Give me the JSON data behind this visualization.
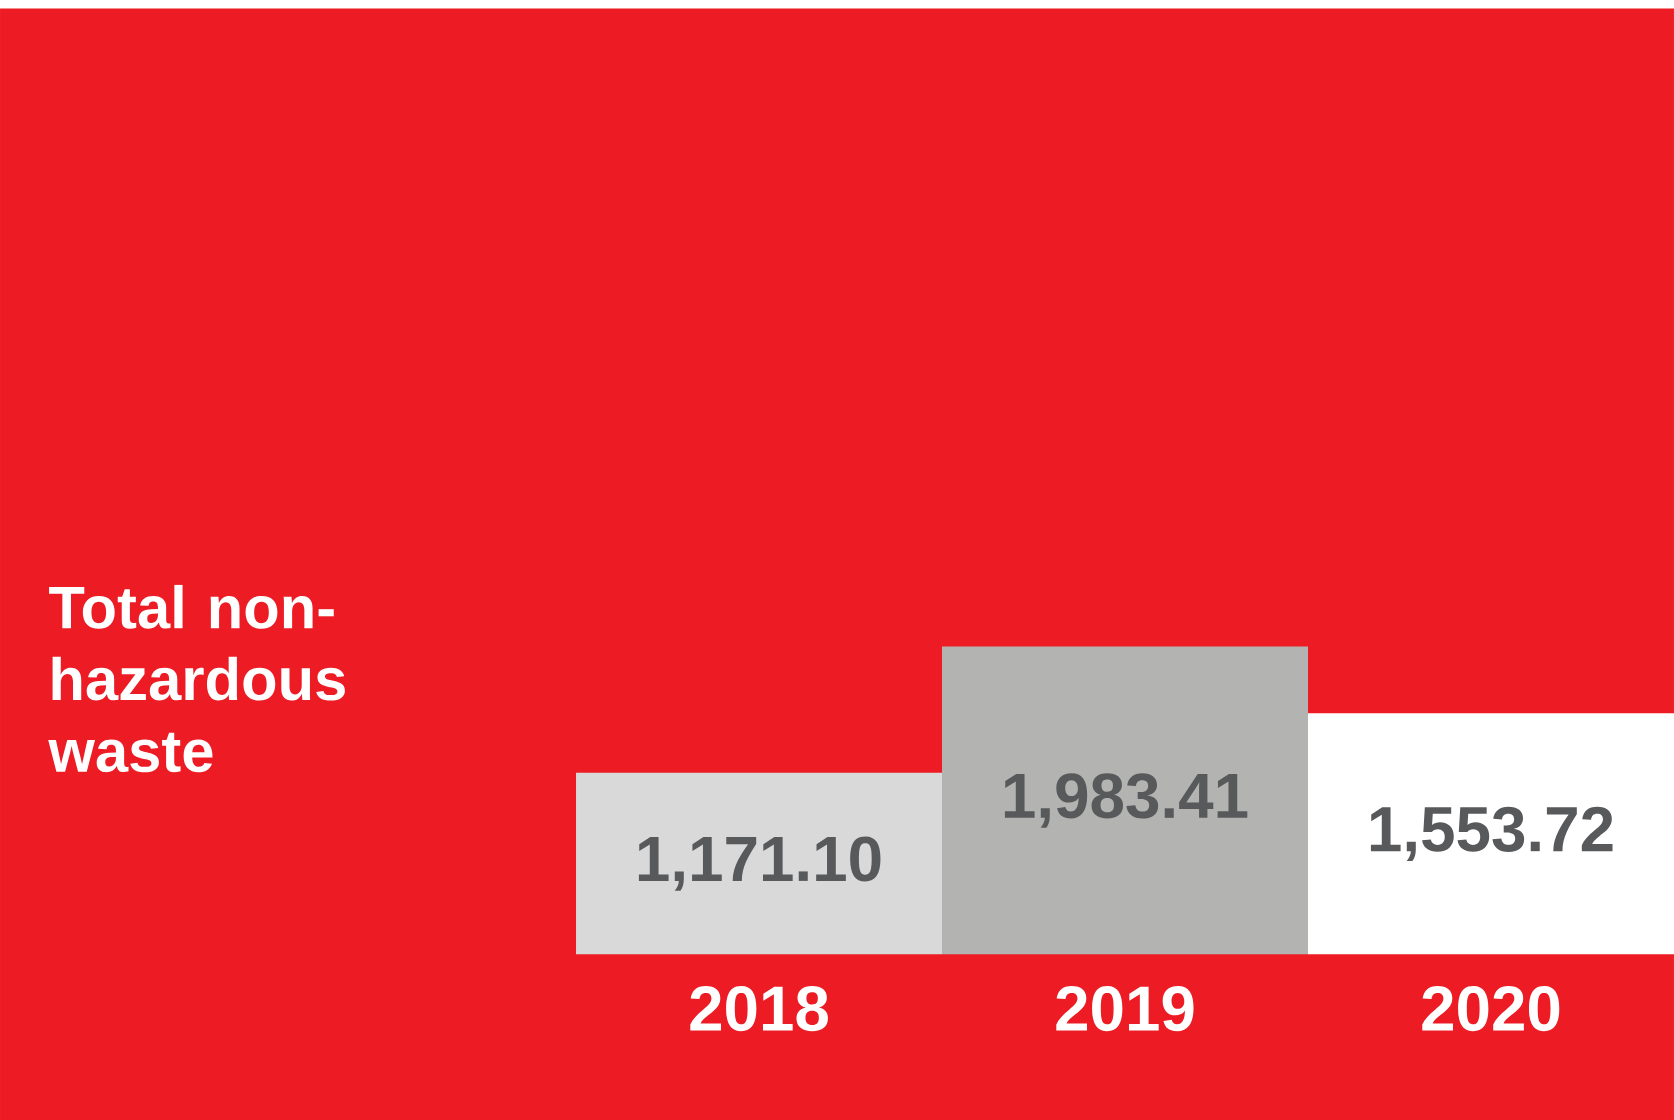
{
  "chart_data": {
    "type": "bar",
    "title": "Total non-hazardous waste",
    "categories": [
      "2018",
      "2019",
      "2020"
    ],
    "values": [
      1171.1,
      1983.41,
      1553.72
    ],
    "colors": [
      "#d9d9d9",
      "#b3b3b1",
      "#ffffff"
    ],
    "value_labels": [
      "1,171.10",
      "1,983.41",
      "1,553.72"
    ]
  }
}
